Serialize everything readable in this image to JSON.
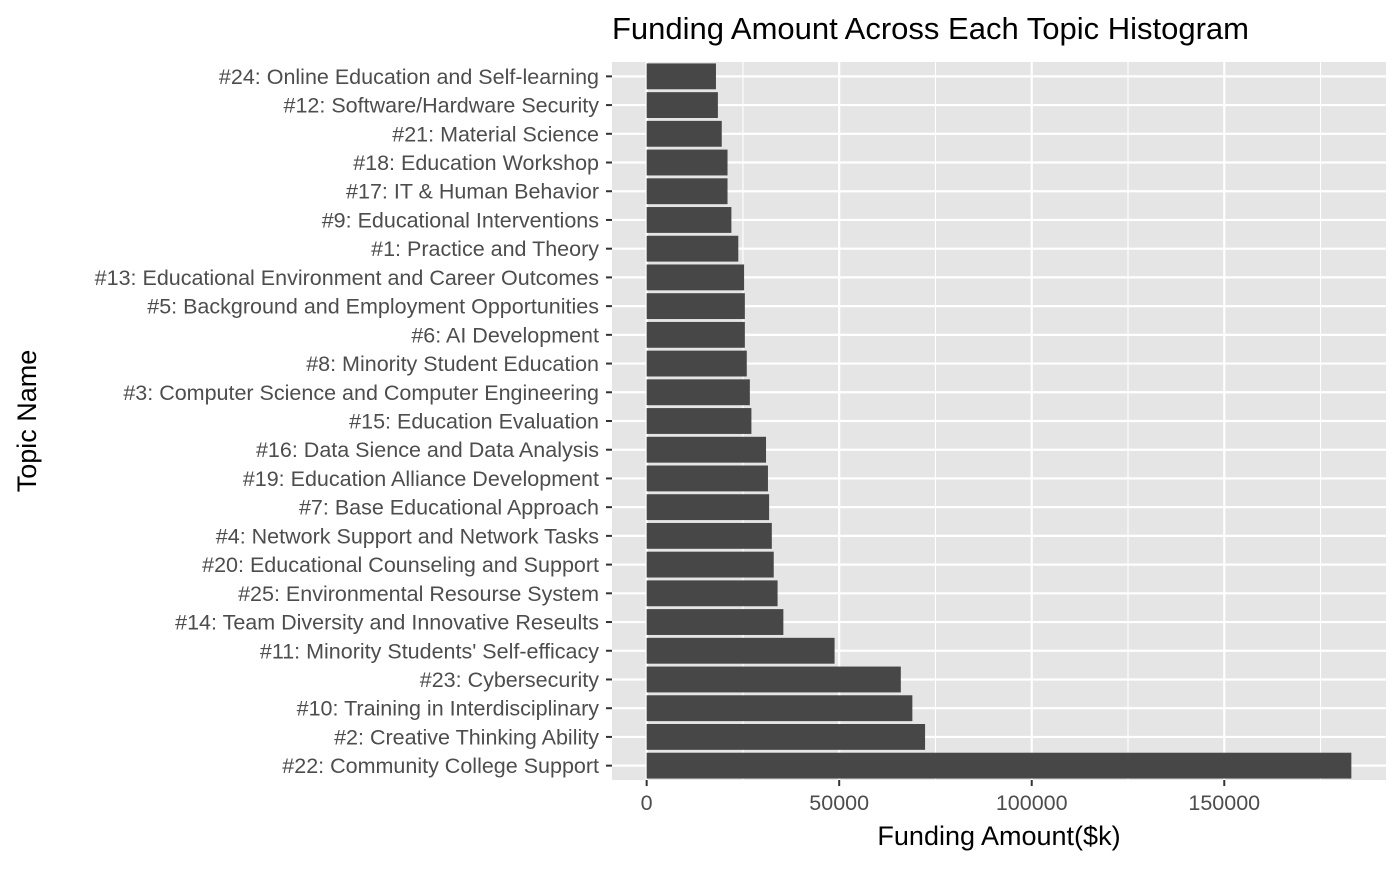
{
  "chart_data": {
    "type": "bar",
    "orientation": "horizontal",
    "title": "Funding Amount Across Each Topic Histogram",
    "xlabel": "Funding Amount($k)",
    "ylabel": "Topic Name",
    "xlim": [
      -9000,
      192000
    ],
    "xticks": [
      0,
      50000,
      100000,
      150000
    ],
    "grid": true,
    "legend": "none",
    "colors": {
      "panel": "#e5e5e5",
      "grid": "#ffffff",
      "bar": "#474747",
      "text": "#4d4d4d",
      "title": "#000000"
    },
    "categories": [
      "#24: Online Education and Self-learning",
      "#12: Software/Hardware Security",
      "#21: Material Science",
      "#18: Education Workshop",
      "#17: IT & Human Behavior",
      "#9: Educational Interventions",
      "#1: Practice and Theory",
      "#13: Educational Environment and Career Outcomes",
      "#5: Background and Employment Opportunities",
      "#6: AI Development",
      "#8: Minority Student Education",
      "#3: Computer Science and Computer Engineering",
      "#15: Education Evaluation",
      "#16: Data Sience and Data Analysis",
      "#19: Education Alliance Development",
      "#7: Base Educational Approach",
      "#4: Network Support and Network Tasks",
      "#20: Educational Counseling and Support",
      "#25: Environmental Resourse System",
      "#14: Team Diversity and Innovative Reseults",
      "#11: Minority Students' Self-efficacy",
      "#23: Cybersecurity",
      "#10: Training in Interdisciplinary",
      "#2: Creative Thinking Ability",
      "#22: Community College Support"
    ],
    "values": [
      18000,
      18500,
      19500,
      21000,
      21000,
      22000,
      23800,
      25300,
      25500,
      25500,
      26000,
      26800,
      27200,
      31000,
      31500,
      31800,
      32500,
      33000,
      34000,
      35500,
      48800,
      66000,
      69000,
      72300,
      183000
    ]
  }
}
